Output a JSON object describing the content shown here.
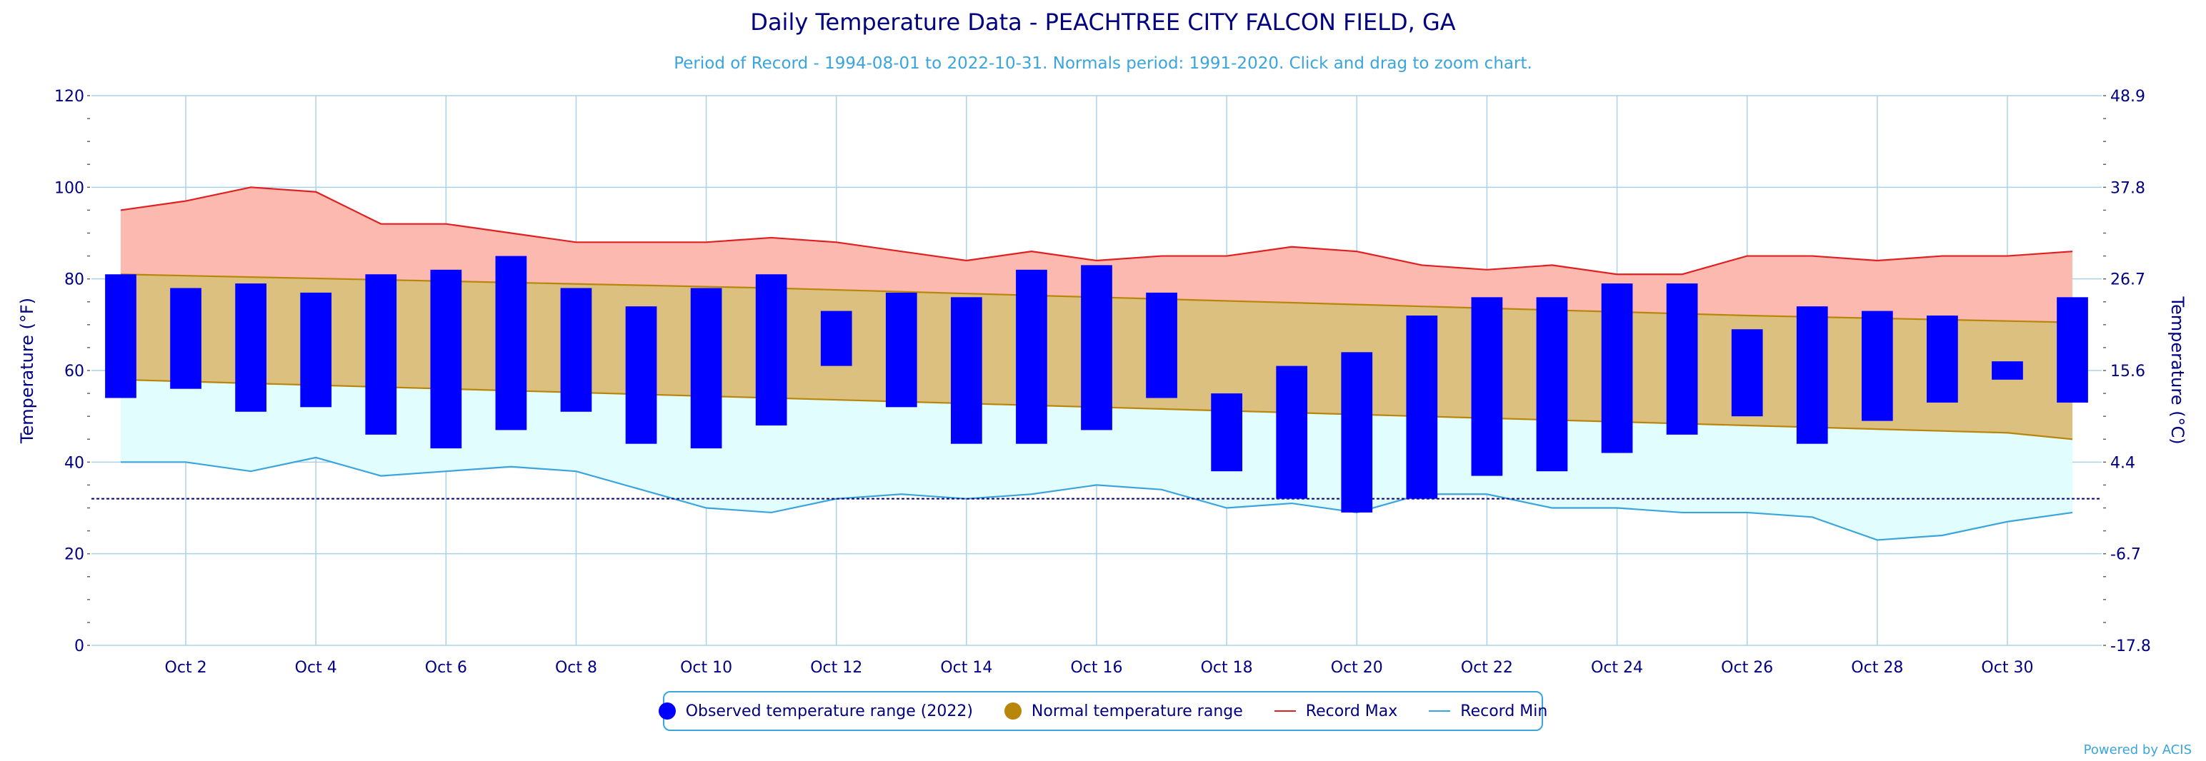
{
  "title": "Daily Temperature Data - PEACHTREE CITY FALCON FIELD, GA",
  "subtitle": "Period of Record - 1994-08-01 to 2022-10-31. Normals period: 1991-2020. Click and drag to zoom chart.",
  "credit": "Powered by ACIS",
  "colors": {
    "observed": "#0000ff",
    "normal": "#b8860b",
    "normal_fill": "#dcc080",
    "record_max": "#e02020",
    "record_max_fill": "#fbb9b0",
    "record_min": "#3aa5dc",
    "record_min_fill": "#e2fdfd",
    "axis_text": "#000080",
    "grid": "#a9d2ea"
  },
  "legend": {
    "observed": "Observed temperature range (2022)",
    "normal": "Normal temperature range",
    "record_max": "Record Max",
    "record_min": "Record Min"
  },
  "chart_data": {
    "type": "bar",
    "xlabel": "",
    "ylabel": "Temperature (°F)",
    "ylabel_right": "Temperature (°C)",
    "ylim": [
      0,
      120
    ],
    "yticks": [
      0,
      20,
      40,
      60,
      80,
      100,
      120
    ],
    "yticks_right": [
      "-17.8",
      "-6.7",
      "4.4",
      "15.6",
      "26.7",
      "37.8",
      "48.9"
    ],
    "freezing_line": 32,
    "days": [
      1,
      2,
      3,
      4,
      5,
      6,
      7,
      8,
      9,
      10,
      11,
      12,
      13,
      14,
      15,
      16,
      17,
      18,
      19,
      20,
      21,
      22,
      23,
      24,
      25,
      26,
      27,
      28,
      29,
      30,
      31
    ],
    "x_tick_labels": [
      {
        "day": 2,
        "label": "Oct 2"
      },
      {
        "day": 4,
        "label": "Oct 4"
      },
      {
        "day": 6,
        "label": "Oct 6"
      },
      {
        "day": 8,
        "label": "Oct 8"
      },
      {
        "day": 10,
        "label": "Oct 10"
      },
      {
        "day": 12,
        "label": "Oct 12"
      },
      {
        "day": 14,
        "label": "Oct 14"
      },
      {
        "day": 16,
        "label": "Oct 16"
      },
      {
        "day": 18,
        "label": "Oct 18"
      },
      {
        "day": 20,
        "label": "Oct 20"
      },
      {
        "day": 22,
        "label": "Oct 22"
      },
      {
        "day": 24,
        "label": "Oct 24"
      },
      {
        "day": 26,
        "label": "Oct 26"
      },
      {
        "day": 28,
        "label": "Oct 28"
      },
      {
        "day": 30,
        "label": "Oct 30"
      }
    ],
    "series": [
      {
        "name": "Observed temperature range (2022)",
        "low": [
          54,
          56,
          51,
          52,
          46,
          43,
          47,
          51,
          44,
          43,
          48,
          61,
          52,
          44,
          44,
          47,
          54,
          38,
          32,
          29,
          32,
          37,
          38,
          42,
          46,
          50,
          44,
          49,
          53,
          58,
          53
        ],
        "high": [
          81,
          78,
          79,
          77,
          81,
          82,
          85,
          78,
          74,
          78,
          81,
          73,
          77,
          76,
          82,
          83,
          77,
          55,
          61,
          64,
          72,
          76,
          76,
          79,
          79,
          69,
          74,
          73,
          72,
          62,
          76
        ]
      },
      {
        "name": "Normal temperature range",
        "low": [
          58,
          57.6,
          57.2,
          56.8,
          56.4,
          56,
          55.6,
          55.2,
          54.8,
          54.4,
          54,
          53.6,
          53.2,
          52.8,
          52.4,
          52,
          51.6,
          51.2,
          50.8,
          50.4,
          50,
          49.6,
          49.2,
          48.8,
          48.4,
          48,
          47.6,
          47.2,
          46.8,
          46.4,
          45
        ],
        "high": [
          81,
          80.7,
          80.4,
          80.1,
          79.8,
          79.5,
          79.2,
          78.9,
          78.6,
          78.3,
          78,
          77.6,
          77.2,
          76.8,
          76.4,
          76,
          75.6,
          75.2,
          74.8,
          74.4,
          74,
          73.6,
          73.2,
          72.8,
          72.4,
          72,
          71.7,
          71.4,
          71.1,
          70.8,
          70.5
        ]
      },
      {
        "name": "Record Max",
        "values": [
          95,
          97,
          100,
          99,
          92,
          92,
          90,
          88,
          88,
          88,
          89,
          88,
          86,
          84,
          86,
          84,
          85,
          85,
          87,
          86,
          83,
          82,
          83,
          81,
          81,
          85,
          85,
          84,
          85,
          85,
          86
        ]
      },
      {
        "name": "Record Min",
        "values": [
          40,
          40,
          38,
          41,
          37,
          38,
          39,
          38,
          34,
          30,
          29,
          32,
          33,
          32,
          33,
          35,
          34,
          30,
          31,
          29,
          33,
          33,
          30,
          30,
          29,
          29,
          28,
          23,
          24,
          27,
          29
        ]
      }
    ]
  }
}
